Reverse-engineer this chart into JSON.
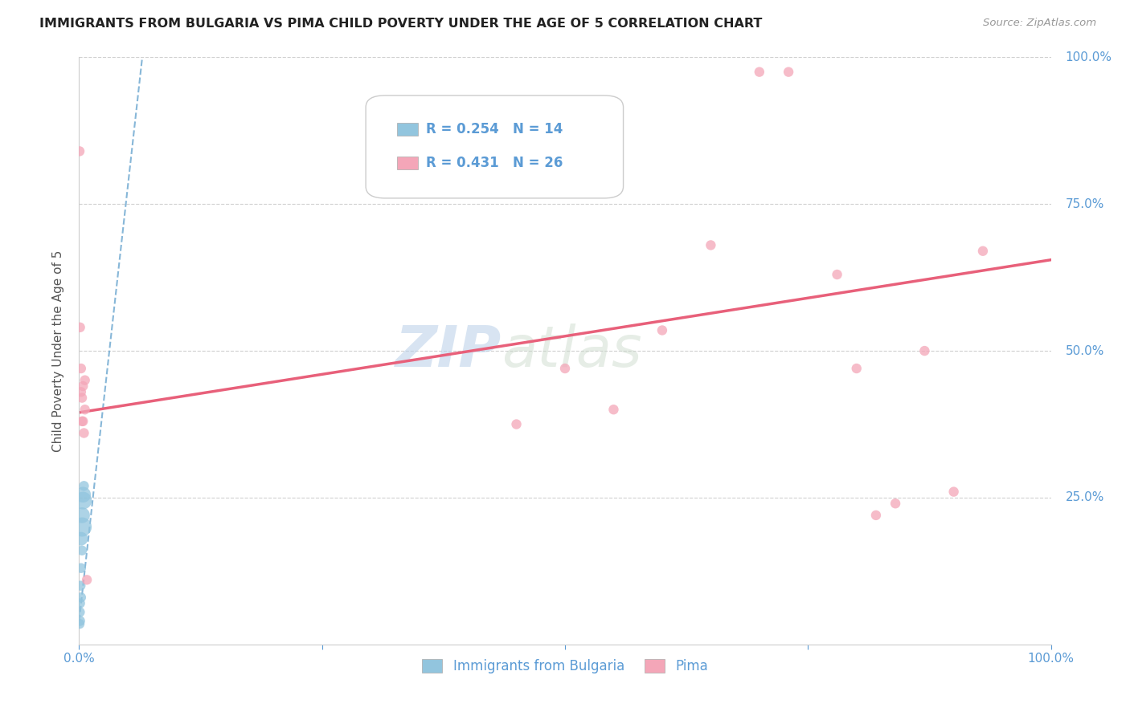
{
  "title": "IMMIGRANTS FROM BULGARIA VS PIMA CHILD POVERTY UNDER THE AGE OF 5 CORRELATION CHART",
  "source": "Source: ZipAtlas.com",
  "ylabel": "Child Poverty Under the Age of 5",
  "xlim": [
    0,
    1.0
  ],
  "ylim": [
    0,
    1.0
  ],
  "blue_label": "Immigrants from Bulgaria",
  "pink_label": "Pima",
  "blue_R": 0.254,
  "blue_N": 14,
  "pink_R": 0.431,
  "pink_N": 26,
  "blue_color": "#92c5de",
  "pink_color": "#f4a6b8",
  "blue_line_color": "#7aafd4",
  "pink_line_color": "#e8607a",
  "background_color": "#ffffff",
  "grid_color": "#d0d0d0",
  "blue_dots": [
    [
      0.0005,
      0.035
    ],
    [
      0.0008,
      0.055
    ],
    [
      0.001,
      0.04
    ],
    [
      0.001,
      0.07
    ],
    [
      0.0015,
      0.1
    ],
    [
      0.002,
      0.08
    ],
    [
      0.002,
      0.13
    ],
    [
      0.002,
      0.18
    ],
    [
      0.003,
      0.2
    ],
    [
      0.003,
      0.22
    ],
    [
      0.003,
      0.16
    ],
    [
      0.004,
      0.245
    ],
    [
      0.004,
      0.255
    ],
    [
      0.005,
      0.27
    ]
  ],
  "blue_dot_sizes": [
    80,
    80,
    80,
    80,
    80,
    80,
    80,
    150,
    300,
    200,
    80,
    250,
    200,
    80
  ],
  "pink_dots": [
    [
      0.0005,
      0.84
    ],
    [
      0.001,
      0.54
    ],
    [
      0.002,
      0.43
    ],
    [
      0.002,
      0.47
    ],
    [
      0.003,
      0.38
    ],
    [
      0.003,
      0.42
    ],
    [
      0.004,
      0.44
    ],
    [
      0.004,
      0.38
    ],
    [
      0.005,
      0.36
    ],
    [
      0.006,
      0.4
    ],
    [
      0.006,
      0.45
    ],
    [
      0.008,
      0.11
    ],
    [
      0.45,
      0.375
    ],
    [
      0.5,
      0.47
    ],
    [
      0.55,
      0.4
    ],
    [
      0.6,
      0.535
    ],
    [
      0.65,
      0.68
    ],
    [
      0.7,
      0.975
    ],
    [
      0.73,
      0.975
    ],
    [
      0.78,
      0.63
    ],
    [
      0.8,
      0.47
    ],
    [
      0.82,
      0.22
    ],
    [
      0.84,
      0.24
    ],
    [
      0.87,
      0.5
    ],
    [
      0.9,
      0.26
    ],
    [
      0.93,
      0.67
    ]
  ],
  "blue_trendline_x": [
    0.0,
    0.065
  ],
  "blue_trendline_y": [
    0.04,
    1.0
  ],
  "pink_trendline_x": [
    0.0,
    1.0
  ],
  "pink_trendline_y": [
    0.395,
    0.655
  ],
  "dot_size_default": 80
}
